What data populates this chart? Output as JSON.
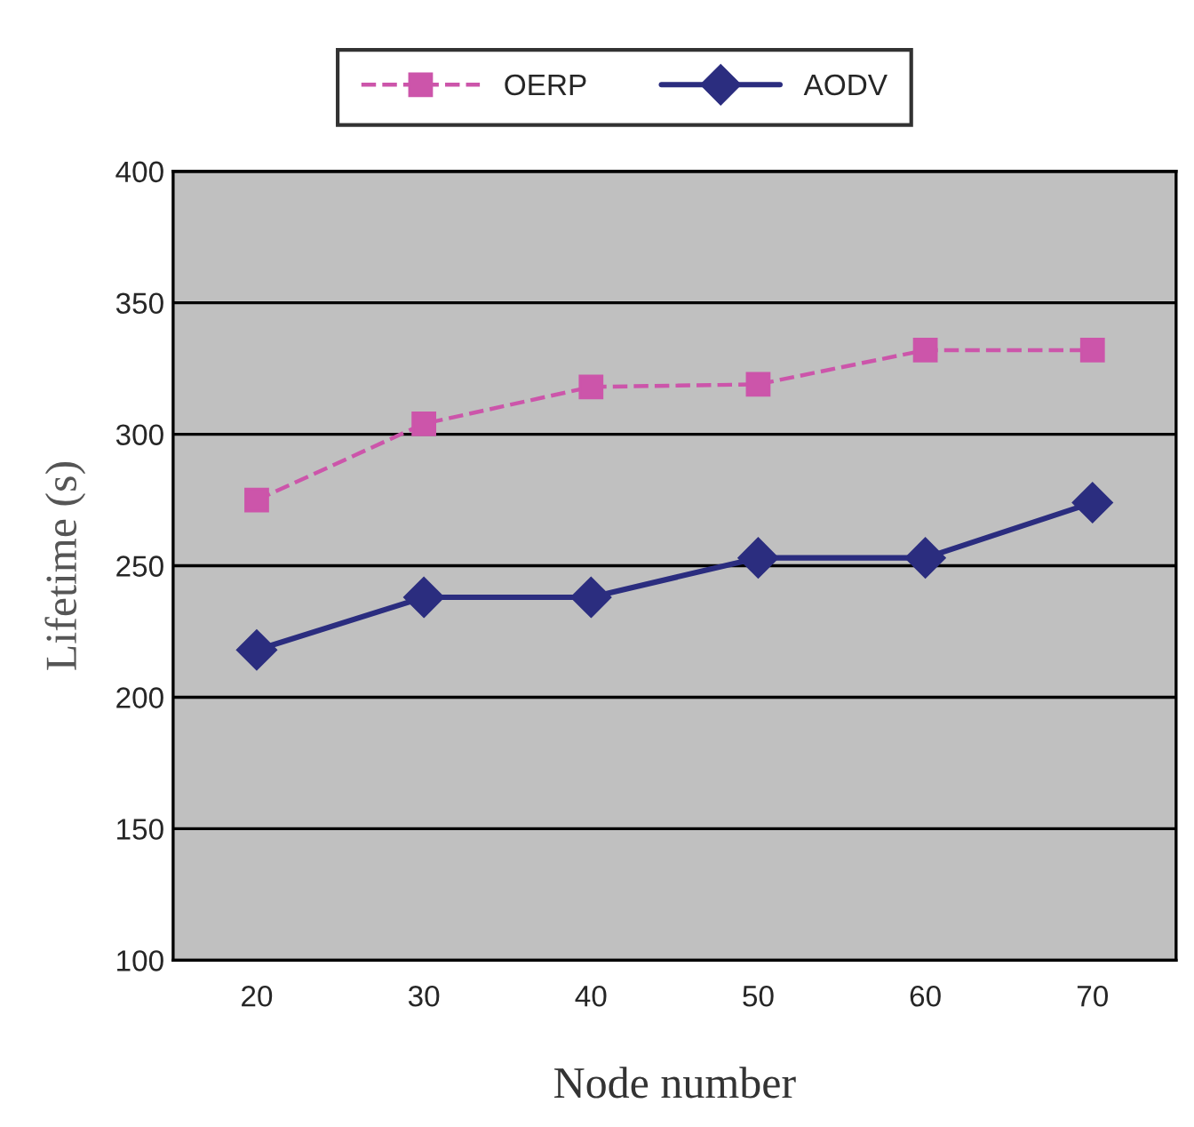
{
  "chart_data": {
    "type": "line",
    "xlabel": "Node number",
    "ylabel": "Lifetime (s)",
    "categories": [
      "20",
      "30",
      "40",
      "50",
      "60",
      "70"
    ],
    "series": [
      {
        "name": "OERP",
        "color": "#cc55aa",
        "marker": "square",
        "line_style": "dashed",
        "values": [
          275,
          304,
          318,
          319,
          332,
          332
        ]
      },
      {
        "name": "AODV",
        "color": "#2b2d7f",
        "marker": "diamond",
        "line_style": "solid",
        "values": [
          218,
          238,
          238,
          253,
          253,
          274
        ]
      }
    ],
    "ylim": [
      100,
      400
    ],
    "yticks": [
      100,
      150,
      200,
      250,
      300,
      350,
      400
    ],
    "grid": "y",
    "legend": "top"
  }
}
